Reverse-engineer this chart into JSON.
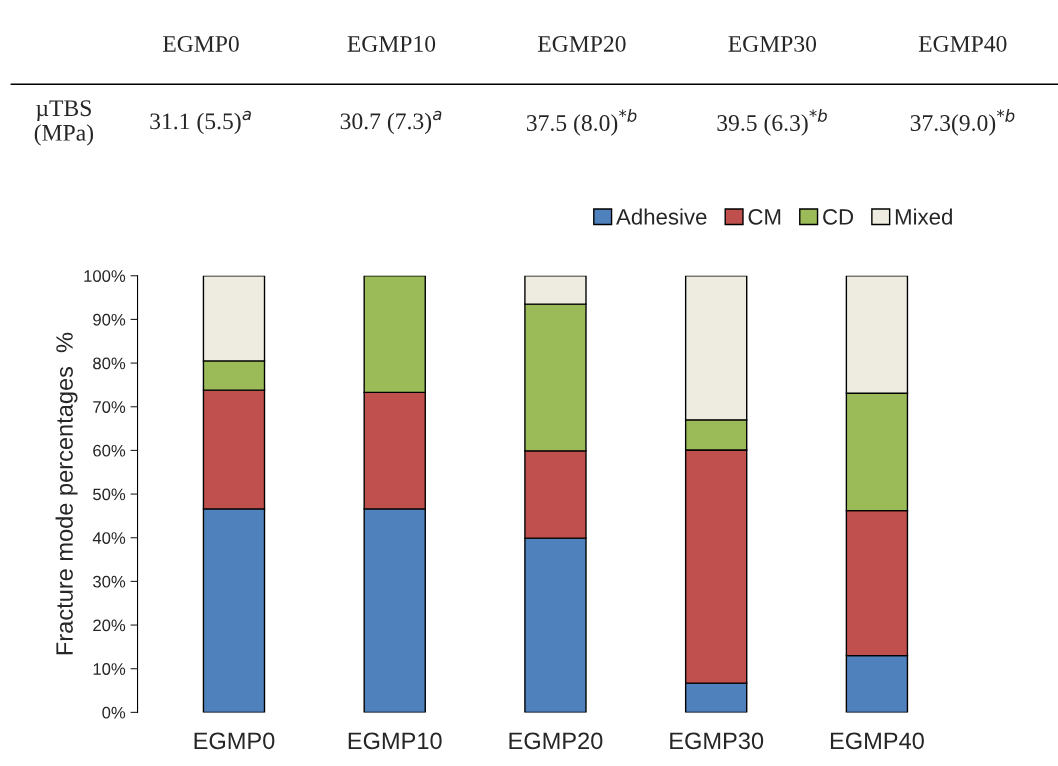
{
  "chart_data": [
    {
      "type": "other",
      "categories": [
        "EGMP0",
        "EGMP10",
        "EGMP20",
        "EGMP30",
        "EGMP40"
      ],
      "ylabel": "µTBS\n(MPa)",
      "value_labels": [
        "31.1 (5.5)$^{a}$",
        "30.7 (7.3)$^{a}$",
        "37.5 (8.0)$^{*b}$",
        "39.5 (6.3)$^{*b}$",
        "37.3(9.0)$^{*b}$"
      ]
    },
    {
      "type": "bar",
      "stacked": true,
      "categories": [
        "EGMP0",
        "EGMP10",
        "EGMP20",
        "EGMP30",
        "EGMP40"
      ],
      "ylabel": "Fracture mode percentages  %",
      "ylim": [
        0,
        100
      ],
      "yticks": [
        {
          "value": 0,
          "label": "0%"
        },
        {
          "value": 10,
          "label": "10%"
        },
        {
          "value": 20,
          "label": "20%"
        },
        {
          "value": 30,
          "label": "30%"
        },
        {
          "value": 40,
          "label": "40%"
        },
        {
          "value": 50,
          "label": "50%"
        },
        {
          "value": 60,
          "label": "60%"
        },
        {
          "value": 70,
          "label": "70%"
        },
        {
          "value": 80,
          "label": "80%"
        },
        {
          "value": 90,
          "label": "90%"
        },
        {
          "value": 100,
          "label": "100%"
        }
      ],
      "legend": "top right",
      "grid": false,
      "series": [
        {
          "name": "Adhesive",
          "color": "#4f81bd",
          "values": [
            46.6,
            46.6,
            39.9,
            6.7,
            13.0
          ]
        },
        {
          "name": "CM",
          "color": "#c0504d",
          "values": [
            27.2,
            26.7,
            20.0,
            53.4,
            33.2
          ]
        },
        {
          "name": "CD",
          "color": "#9bbb59",
          "values": [
            6.7,
            26.7,
            33.6,
            6.9,
            26.9
          ]
        },
        {
          "name": "Mixed",
          "color": "#eeece1",
          "values": [
            19.5,
            null,
            6.5,
            33.0,
            26.9
          ]
        }
      ]
    }
  ]
}
